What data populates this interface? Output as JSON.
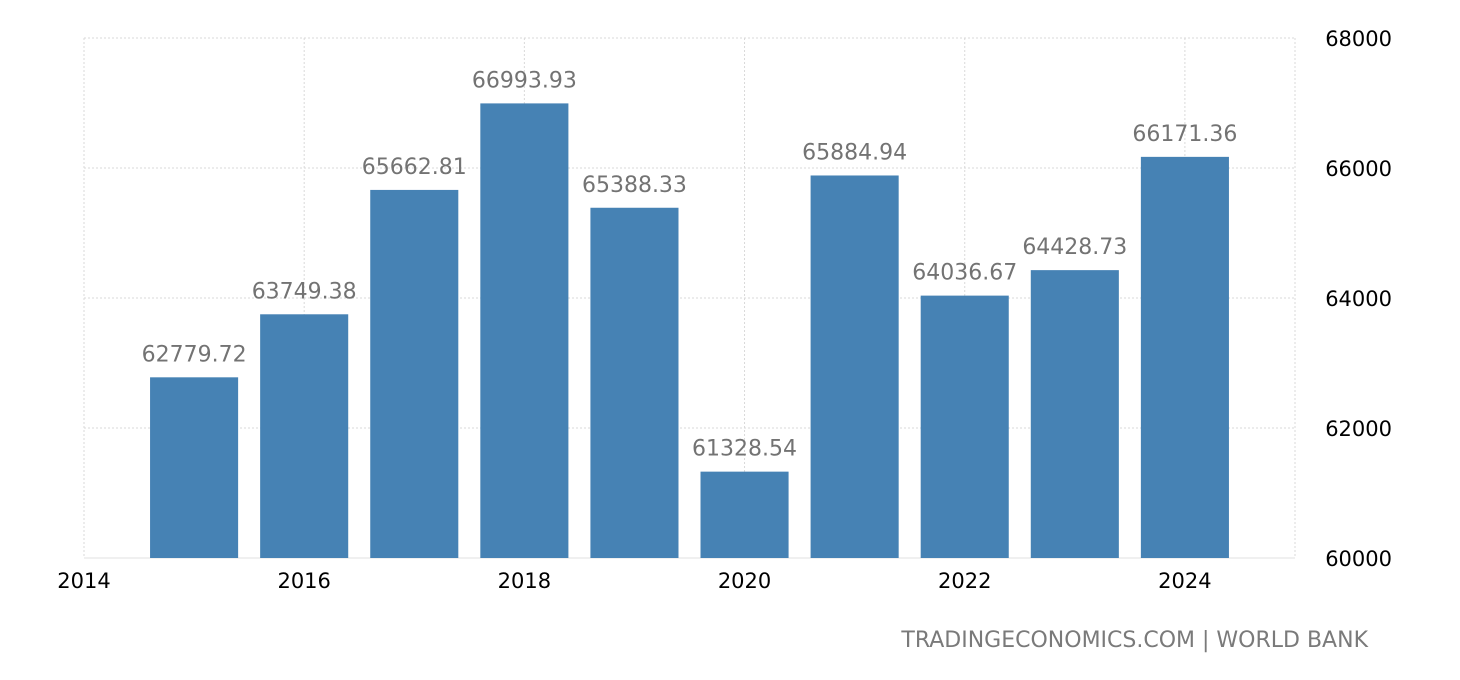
{
  "chart_data": {
    "type": "bar",
    "categories": [
      "2015",
      "2016",
      "2017",
      "2018",
      "2019",
      "2020",
      "2021",
      "2022",
      "2023",
      "2024"
    ],
    "values": [
      62779.72,
      63749.38,
      65662.81,
      66993.93,
      65388.33,
      61328.54,
      65884.94,
      64036.67,
      64428.73,
      66171.36
    ],
    "data_labels": [
      "62779.72",
      "63749.38",
      "65662.81",
      "66993.93",
      "65388.33",
      "61328.54",
      "65884.94",
      "64036.67",
      "64428.73",
      "66171.36"
    ],
    "x_ticks": [
      "2014",
      "2016",
      "2018",
      "2020",
      "2022",
      "2024"
    ],
    "y_ticks": [
      "60000",
      "62000",
      "64000",
      "66000",
      "68000"
    ],
    "ylim": [
      60000,
      68000
    ],
    "xlim": [
      2014,
      2025
    ],
    "y_axis_side": "right",
    "grid": true,
    "bar_color": "#4682b4",
    "label_color": "#737373"
  },
  "footer": {
    "source": "TRADINGECONOMICS.COM | WORLD BANK"
  }
}
